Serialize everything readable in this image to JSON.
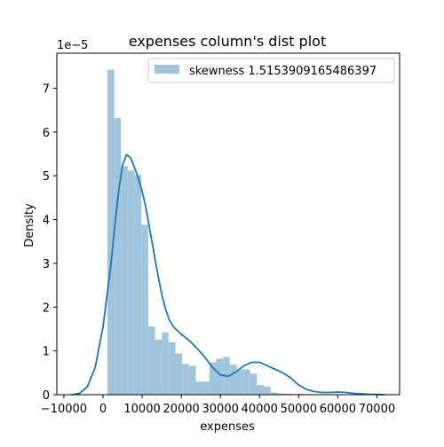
{
  "chart_data": {
    "type": "histogram",
    "title": "expenses column's dist plot",
    "xlabel": "expenses",
    "ylabel": "Density",
    "y_scale_label": "1e−5",
    "xlim": [
      -11800,
      75800
    ],
    "ylim": [
      0,
      7.8
    ],
    "x_ticks": [
      -10000,
      0,
      10000,
      20000,
      30000,
      40000,
      50000,
      60000,
      70000
    ],
    "x_tick_labels": [
      "−10000",
      "0",
      "10000",
      "20000",
      "30000",
      "40000",
      "50000",
      "60000",
      "70000"
    ],
    "y_ticks": [
      0,
      1,
      2,
      3,
      4,
      5,
      6,
      7
    ],
    "y_tick_labels": [
      "0",
      "1",
      "2",
      "3",
      "4",
      "5",
      "6",
      "7"
    ],
    "grid": false,
    "legend": {
      "placement": "top-right",
      "entries": [
        "skewness 1.5153909165486397"
      ]
    },
    "colors": {
      "bars": "#a1c4dd",
      "kde": "#1f77b4",
      "axes": "#000000"
    },
    "histogram": {
      "bin_edges": [
        1122,
        2860,
        4598,
        6336,
        8074,
        9812,
        11550,
        13288,
        15026,
        16764,
        18502,
        20240,
        21978,
        23716,
        25454,
        27192,
        28930,
        30668,
        32406,
        34144,
        35882,
        37620,
        39358,
        41096,
        42834,
        44572,
        46310,
        48048,
        49786,
        51524
      ],
      "densities": [
        7.42,
        6.32,
        5.22,
        5.12,
        5.02,
        3.88,
        1.56,
        1.26,
        1.42,
        1.2,
        0.94,
        0.7,
        0.66,
        0.3,
        0.3,
        0.74,
        0.82,
        0.86,
        0.68,
        0.58,
        0.58,
        0.48,
        0.22,
        0.18,
        0.05,
        0.03,
        0.02,
        0.01,
        0.02
      ]
    },
    "kde": {
      "x": [
        -8000,
        -6000,
        -4000,
        -2000,
        0,
        2000,
        3000,
        4000,
        5000,
        6000,
        7000,
        8000,
        9000,
        10000,
        11000,
        12000,
        13000,
        14000,
        15000,
        16000,
        17000,
        18000,
        20000,
        22000,
        24000,
        26000,
        28000,
        30000,
        32000,
        34000,
        36000,
        38000,
        40000,
        42000,
        44000,
        46000,
        48000,
        50000,
        52000,
        54000,
        56000,
        58000,
        60000,
        62000,
        64000,
        66000,
        68000,
        70000,
        72000
      ],
      "y": [
        0.0,
        0.03,
        0.18,
        0.62,
        1.55,
        2.95,
        3.85,
        4.65,
        5.25,
        5.48,
        5.42,
        5.2,
        4.95,
        4.65,
        4.25,
        3.75,
        3.25,
        2.75,
        2.3,
        1.95,
        1.7,
        1.55,
        1.38,
        1.24,
        1.06,
        0.86,
        0.62,
        0.45,
        0.42,
        0.52,
        0.66,
        0.74,
        0.74,
        0.66,
        0.58,
        0.5,
        0.38,
        0.22,
        0.12,
        0.07,
        0.05,
        0.05,
        0.06,
        0.05,
        0.03,
        0.02,
        0.01,
        0.005,
        0.0
      ]
    }
  }
}
